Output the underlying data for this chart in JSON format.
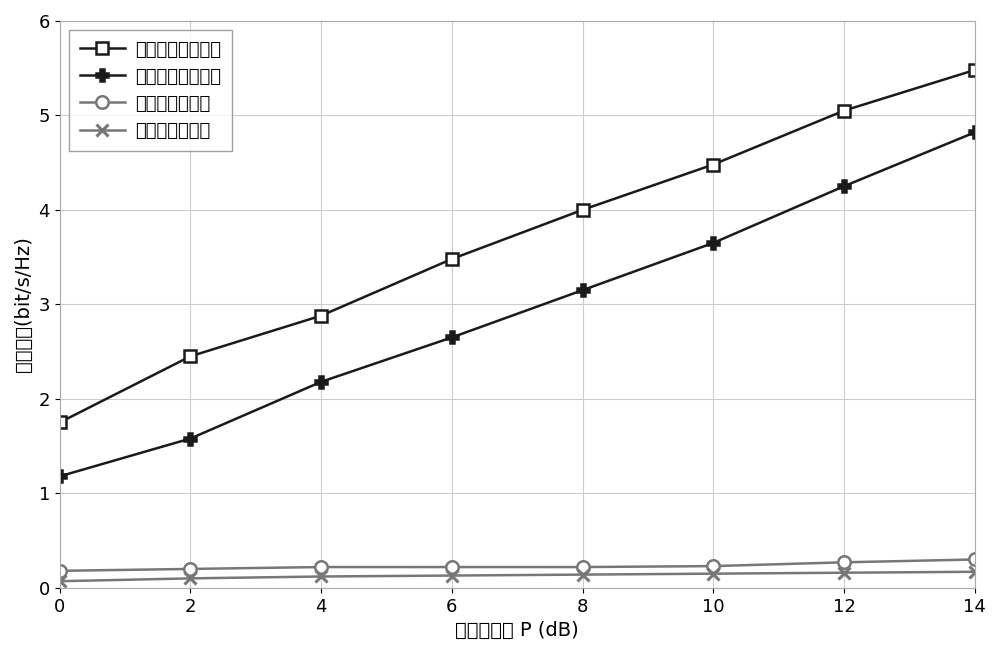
{
  "x": [
    0,
    2,
    4,
    6,
    8,
    10,
    12,
    14
  ],
  "series": [
    {
      "label": "鲁棒二维波束赋形",
      "y": [
        1.75,
        2.45,
        2.88,
        3.48,
        4.0,
        4.48,
        5.05,
        5.48
      ],
      "color": "#1a1a1a",
      "marker": "s",
      "markersize": 8,
      "linewidth": 1.8,
      "markerfacecolor": "white",
      "markeredgecolor": "#1a1a1a",
      "markeredgewidth": 1.8
    },
    {
      "label": "鲁棒一维波束赋形",
      "y": [
        1.18,
        1.58,
        2.18,
        2.65,
        3.15,
        3.65,
        4.25,
        4.82
      ],
      "color": "#1a1a1a",
      "marker": "P",
      "markersize": 9,
      "linewidth": 1.8,
      "markerfacecolor": "#1a1a1a",
      "markeredgecolor": "#1a1a1a",
      "markeredgewidth": 1.8
    },
    {
      "label": "非鲁棒波束赋形",
      "y": [
        0.18,
        0.2,
        0.22,
        0.22,
        0.22,
        0.23,
        0.27,
        0.3
      ],
      "color": "#777777",
      "marker": "o",
      "markersize": 9,
      "linewidth": 1.8,
      "markerfacecolor": "white",
      "markeredgecolor": "#777777",
      "markeredgewidth": 1.8
    },
    {
      "label": "非安全波束赋形",
      "y": [
        0.07,
        0.1,
        0.12,
        0.13,
        0.14,
        0.15,
        0.16,
        0.17
      ],
      "color": "#777777",
      "marker": "x",
      "markersize": 9,
      "linewidth": 1.8,
      "markerfacecolor": "#777777",
      "markeredgecolor": "#777777",
      "markeredgewidth": 2.2
    }
  ],
  "xlabel": "发送端功率 P (dB)",
  "ylabel": "安全速率(bit/s/Hz)",
  "xlim": [
    0,
    14
  ],
  "ylim": [
    0,
    6
  ],
  "xticks": [
    0,
    2,
    4,
    6,
    8,
    10,
    12,
    14
  ],
  "yticks": [
    0,
    1,
    2,
    3,
    4,
    5,
    6
  ],
  "grid": true,
  "legend_loc": "upper left",
  "font_size": 14,
  "tick_font_size": 13,
  "background_color": "#ffffff",
  "figsize": [
    10.0,
    6.54
  ],
  "dpi": 100
}
